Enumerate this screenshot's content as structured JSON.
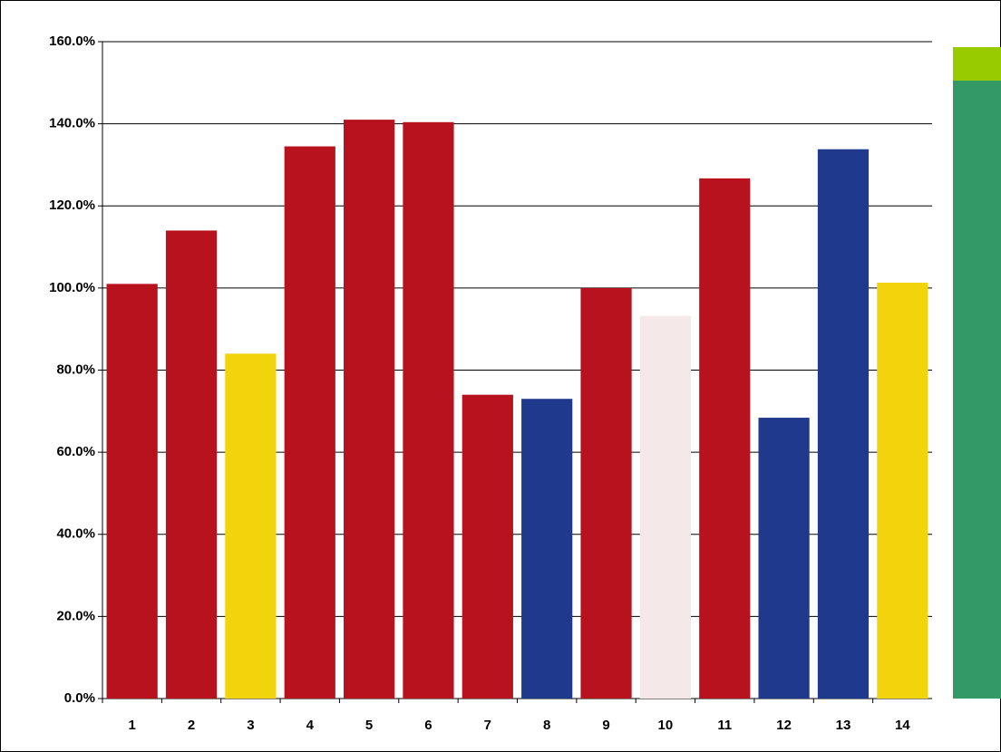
{
  "chart_data": {
    "type": "bar",
    "categories": [
      "1",
      "2",
      "3",
      "4",
      "5",
      "6",
      "7",
      "8",
      "9",
      "10",
      "11",
      "12",
      "13",
      "14"
    ],
    "values": [
      101,
      114,
      84,
      134.5,
      141,
      140.4,
      74,
      73,
      100,
      93.2,
      126.7,
      68.4,
      133.8,
      101.3
    ],
    "colors": [
      "#b8121f",
      "#b8121f",
      "#f2d40c",
      "#b8121f",
      "#b8121f",
      "#b8121f",
      "#b8121f",
      "#1f3a8c",
      "#b8121f",
      "#f4e8e8",
      "#b8121f",
      "#1f3a8c",
      "#1f3a8c",
      "#f2d40c"
    ],
    "ylim": [
      0,
      160
    ],
    "yticks": [
      {
        "value": 0,
        "label": "0.0%"
      },
      {
        "value": 20,
        "label": "20.0%"
      },
      {
        "value": 40,
        "label": "40.0%"
      },
      {
        "value": 60,
        "label": "60.0%"
      },
      {
        "value": 80,
        "label": "80.0%"
      },
      {
        "value": 100,
        "label": "100.0%"
      },
      {
        "value": 120,
        "label": "120.0%"
      },
      {
        "value": 140,
        "label": "140.0%"
      },
      {
        "value": 160,
        "label": "160.0%"
      }
    ],
    "grid": true
  }
}
